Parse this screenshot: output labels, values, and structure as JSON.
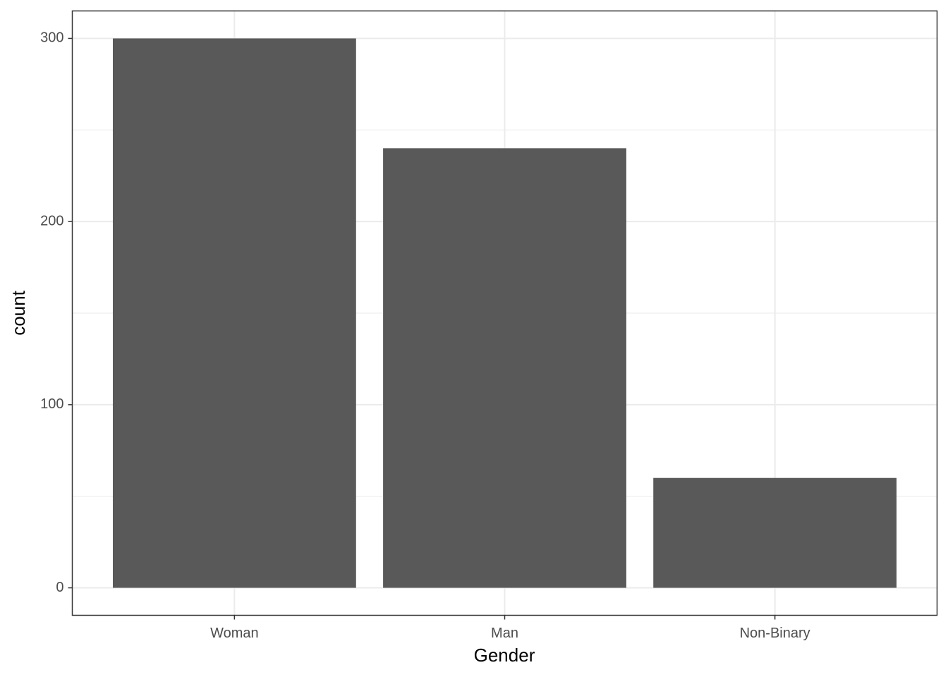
{
  "chart_data": {
    "type": "bar",
    "x_label": "Gender",
    "y_label": "count",
    "categories": [
      "Woman",
      "Man",
      "Non-Binary"
    ],
    "values": [
      300,
      240,
      60
    ],
    "color": "#595959",
    "ylim": [
      -15,
      315
    ],
    "yticks": [
      0,
      100,
      200,
      300
    ],
    "grid": true,
    "minor_grid": true
  }
}
